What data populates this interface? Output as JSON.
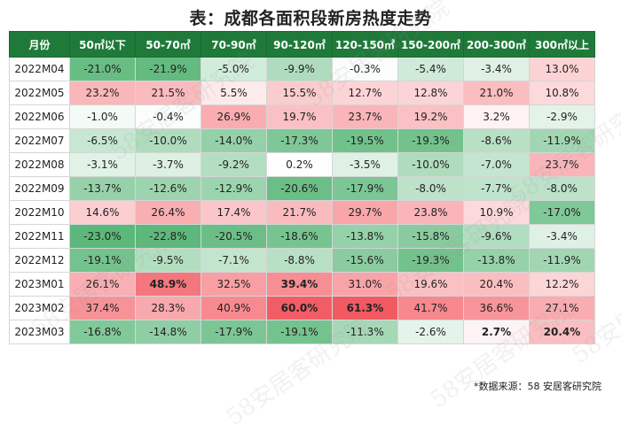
{
  "chart_data": {
    "type": "heatmap",
    "title": "表：成都各面积段新房热度走势",
    "row_header": "月份",
    "columns": [
      "50㎡以下",
      "50-70㎡",
      "70-90㎡",
      "90-120㎡",
      "120-150㎡",
      "150-200㎡",
      "200-300㎡",
      "300㎡以上"
    ],
    "rows": [
      "2022M04",
      "2022M05",
      "2022M06",
      "2022M07",
      "2022M08",
      "2022M09",
      "2022M10",
      "2022M11",
      "2022M12",
      "2023M01",
      "2023M02",
      "2023M03"
    ],
    "values": [
      [
        -21.0,
        -21.9,
        -5.0,
        -9.9,
        -0.3,
        -5.4,
        -3.4,
        13.0
      ],
      [
        23.2,
        21.5,
        5.5,
        15.5,
        12.7,
        12.8,
        21.0,
        10.8
      ],
      [
        -1.0,
        -0.4,
        26.9,
        19.7,
        23.7,
        19.2,
        3.2,
        -2.9
      ],
      [
        -6.5,
        -10.0,
        -14.0,
        -17.3,
        -19.5,
        -19.3,
        -8.6,
        -11.9
      ],
      [
        -3.1,
        -3.7,
        -9.2,
        0.2,
        -3.5,
        -10.0,
        -7.0,
        23.7
      ],
      [
        -13.7,
        -12.6,
        -12.9,
        -20.6,
        -17.9,
        -8.0,
        -7.7,
        -8.0
      ],
      [
        14.6,
        26.4,
        17.4,
        21.7,
        29.7,
        23.8,
        10.9,
        -17.0
      ],
      [
        -23.0,
        -22.8,
        -20.5,
        -18.6,
        -13.8,
        -15.8,
        -9.6,
        -3.4
      ],
      [
        -19.1,
        -9.5,
        -7.1,
        -8.8,
        -15.6,
        -19.3,
        -13.8,
        -11.9
      ],
      [
        26.1,
        48.9,
        32.5,
        39.4,
        31.0,
        19.6,
        20.4,
        12.2
      ],
      [
        37.4,
        28.3,
        40.9,
        60.0,
        61.3,
        41.7,
        36.6,
        27.1
      ],
      [
        -16.8,
        -14.8,
        -17.9,
        -19.1,
        -11.3,
        -2.6,
        2.7,
        20.4
      ]
    ],
    "unit": "%",
    "bold_cells": [
      [
        9,
        1
      ],
      [
        9,
        3
      ],
      [
        10,
        3
      ],
      [
        10,
        4
      ],
      [
        11,
        6
      ],
      [
        11,
        7
      ]
    ]
  },
  "source_note": "*数据来源：58 安居客研究院",
  "watermark_text": "58安居客研究院",
  "colors": {
    "header_bg": "#1f7a3a",
    "neg_strong": "#5cb87a",
    "neutral": "#ffffff",
    "pos_strong": "#f25a62"
  }
}
